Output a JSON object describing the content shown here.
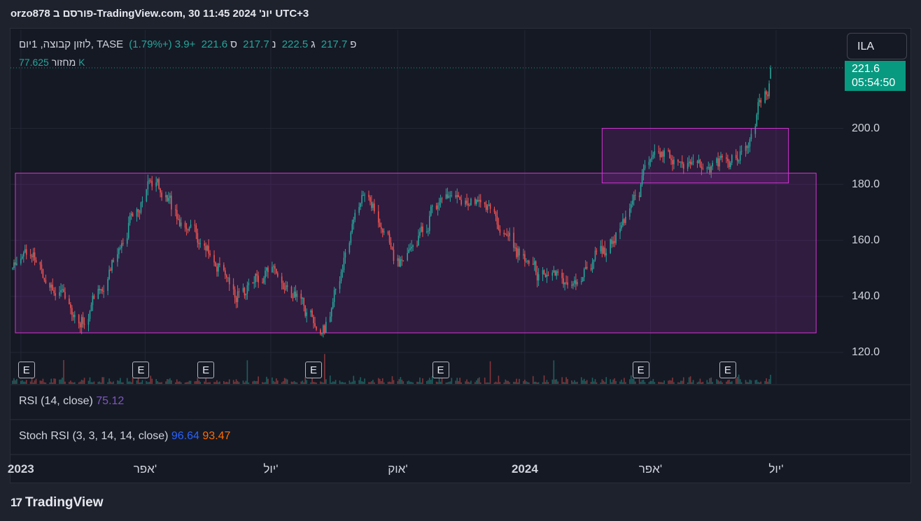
{
  "header": {
    "title": "orzo878 פורסם ב-TradingView.com, 30 יונ' 2024 11:45 UTC+3"
  },
  "legend": {
    "symbol": "לוזון קבוצה, 1יום, TASE",
    "o_label": "פ",
    "o_value": "217.7",
    "h_label": "ג",
    "h_value": "222.5",
    "l_label": "נ",
    "l_value": "217.7",
    "c_label": "ס",
    "c_value": "221.6",
    "change": "+3.9 (+1.79%)",
    "volume_label": "מחזור",
    "volume_value": "77.625 K"
  },
  "currency_button": "ILA",
  "last_price": {
    "value": "221.6",
    "countdown": "05:54:50"
  },
  "panes": {
    "rsi": {
      "label": "RSI (14, close)",
      "value": "75.12"
    },
    "stoch": {
      "label": "Stoch RSI (3, 3, 14, 14, close)",
      "k_value": "96.64",
      "d_value": "93.47"
    }
  },
  "y_ticks": [
    "200.0",
    "180.0",
    "160.0",
    "140.0",
    "120.0"
  ],
  "x_ticks": [
    {
      "label": "2023",
      "bold": true
    },
    {
      "label": "אפר'",
      "bold": false
    },
    {
      "label": "יול'",
      "bold": false
    },
    {
      "label": "אוק'",
      "bold": false
    },
    {
      "label": "2024",
      "bold": true
    },
    {
      "label": "אפר'",
      "bold": false
    },
    {
      "label": "יול'",
      "bold": false
    }
  ],
  "earnings_marker": "E",
  "brand": {
    "logo": "17",
    "name": "TradingView"
  },
  "colors": {
    "up": "#26a69a",
    "down": "#ef5350",
    "zone_fill": "#9c27b0",
    "zone_border": "#d633d6",
    "background": "#151924"
  },
  "chart_data": {
    "type": "candlestick",
    "timeframe": "1D",
    "ylim": [
      115,
      227
    ],
    "x": [
      "2022-12-26",
      "2023-01-03",
      "2023-02-13",
      "2023-04-03",
      "2023-05-01",
      "2023-06-05",
      "2023-07-03",
      "2023-08-07",
      "2023-09-04",
      "2023-10-02",
      "2023-11-01",
      "2023-12-04",
      "2024-01-02",
      "2024-02-05",
      "2024-03-04",
      "2024-04-01",
      "2024-05-01",
      "2024-06-03",
      "2024-06-28"
    ],
    "close": [
      150,
      158,
      130,
      182,
      165,
      140,
      150,
      125,
      180,
      150,
      177,
      172,
      150,
      145,
      160,
      190,
      187,
      188,
      221.6
    ],
    "last_bar": {
      "open": 217.7,
      "high": 222.5,
      "low": 217.7,
      "close": 221.6,
      "change": 3.9,
      "change_pct": 1.79
    },
    "zones": [
      {
        "name": "range",
        "from": "2022-12-28",
        "to": "2024-07-30",
        "low": 127,
        "high": 184
      },
      {
        "name": "consolidation",
        "from": "2024-02-26",
        "to": "2024-07-10",
        "low": 180.5,
        "high": 200
      }
    ],
    "earnings_dates": [
      "2023-01-05",
      "2023-03-29",
      "2023-05-15",
      "2023-08-01",
      "2023-11-01",
      "2024-03-25",
      "2024-05-27"
    ],
    "last_volume_k": 77.625,
    "rsi": 75.12,
    "stoch_rsi": {
      "k": 96.64,
      "d": 93.47
    }
  }
}
